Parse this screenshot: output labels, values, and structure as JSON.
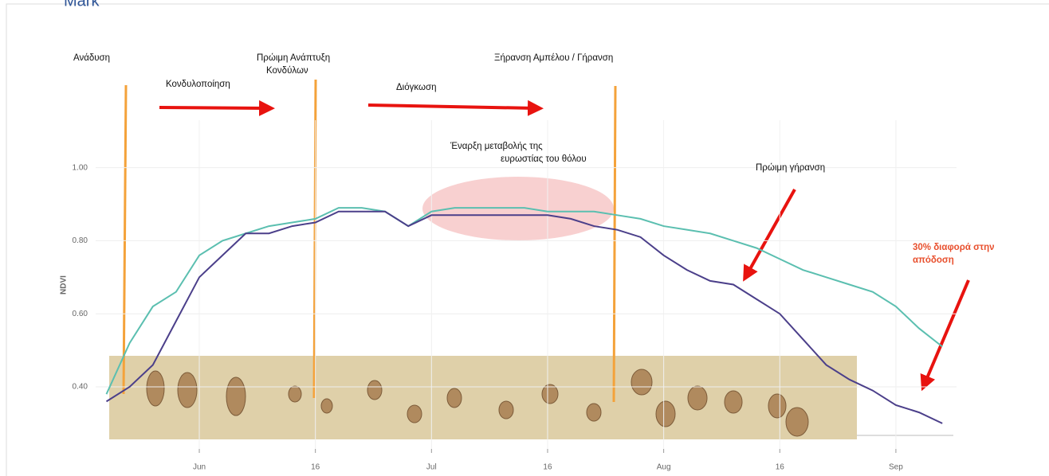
{
  "chart_data": {
    "type": "line",
    "header": "Mark",
    "ylabel": "NDVI",
    "categories": [
      null,
      null,
      null,
      null,
      "Jun",
      null,
      null,
      null,
      null,
      "16",
      null,
      null,
      null,
      null,
      "Jul",
      null,
      null,
      null,
      null,
      "16",
      null,
      null,
      null,
      null,
      "Aug",
      null,
      null,
      null,
      null,
      "16",
      null,
      null,
      null,
      null,
      "Sep",
      null,
      null
    ],
    "series": [
      {
        "color": "#5bbfb0",
        "values": [
          0.38,
          0.52,
          0.62,
          0.66,
          0.76,
          0.8,
          0.82,
          0.84,
          0.85,
          0.86,
          0.89,
          0.89,
          0.88,
          0.84,
          0.88,
          0.89,
          0.89,
          0.89,
          0.89,
          0.88,
          0.88,
          0.88,
          0.87,
          0.86,
          0.84,
          0.83,
          0.82,
          0.8,
          0.78,
          0.75,
          0.72,
          0.7,
          0.68,
          0.66,
          0.62,
          0.56,
          0.51
        ]
      },
      {
        "color": "#4b3f8a",
        "values": [
          0.36,
          0.4,
          0.46,
          0.58,
          0.7,
          0.76,
          0.82,
          0.82,
          0.84,
          0.85,
          0.88,
          0.88,
          0.88,
          0.84,
          0.87,
          0.87,
          0.87,
          0.87,
          0.87,
          0.87,
          0.86,
          0.84,
          0.83,
          0.81,
          0.76,
          0.72,
          0.69,
          0.68,
          0.64,
          0.6,
          0.53,
          0.46,
          0.42,
          0.39,
          0.35,
          0.33,
          0.3
        ]
      }
    ],
    "ylim": [
      0.23,
      1.13
    ],
    "yticks": [
      {
        "value": 0.4,
        "label": "0.40"
      },
      {
        "value": 0.6,
        "label": "0.60"
      },
      {
        "value": 0.8,
        "label": "0.80"
      },
      {
        "value": 1,
        "label": "1.00"
      }
    ],
    "annotations": [
      {
        "lines": [
          "Ανάδυση"
        ]
      },
      {
        "lines": [
          "Κονδυλοποίηση"
        ]
      },
      {
        "lines": [
          "Πρώιμη Ανάπτυξη",
          "Κονδύλων"
        ]
      },
      {
        "lines": [
          "Διόγκωση"
        ]
      },
      {
        "lines": [
          "Ξήρανση Αμπέλου / Γήρανση"
        ]
      },
      {
        "lines": [
          "Έναρξη μεταβολής της",
          "ευρωστίας του θόλου"
        ]
      },
      {
        "lines": [
          "Πρώιμη γήρανση"
        ]
      },
      {
        "lines": [
          "30% διαφορά στην",
          "απόδοση"
        ]
      }
    ]
  }
}
